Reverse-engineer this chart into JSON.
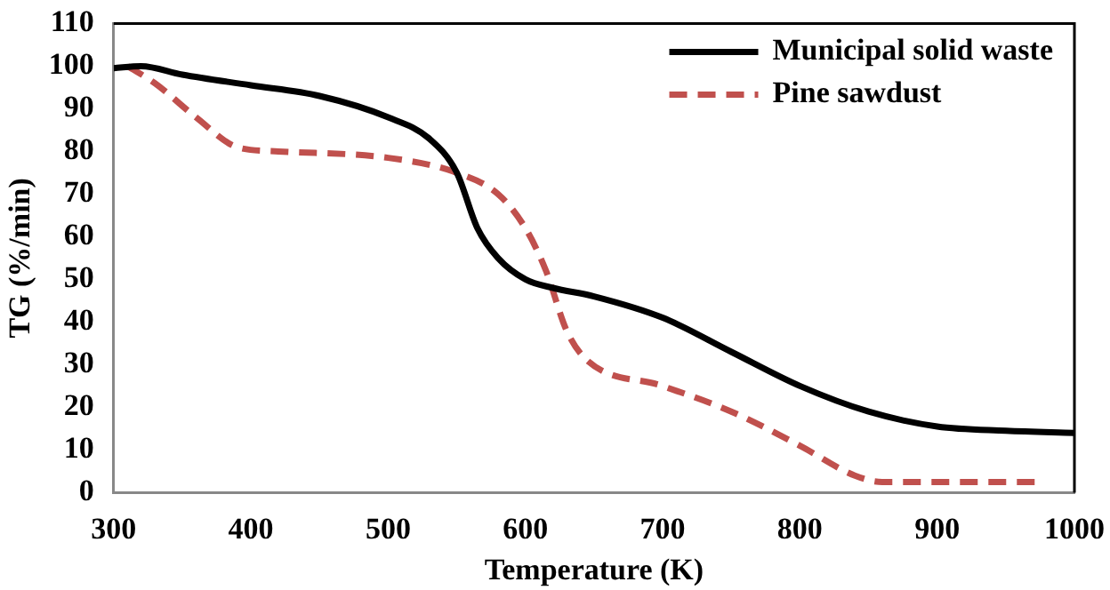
{
  "chart_data": {
    "type": "line",
    "xlabel": "Temperature (K)",
    "ylabel": "TG (%/min)",
    "xlim": [
      300,
      1000
    ],
    "xticks": [
      300,
      400,
      500,
      600,
      700,
      800,
      900,
      1000
    ],
    "ylim": [
      0,
      110
    ],
    "yticks": [
      0,
      10,
      20,
      30,
      40,
      50,
      60,
      70,
      80,
      90,
      100,
      110
    ],
    "grid": false,
    "legend": "top right",
    "marker": "none",
    "series": [
      {
        "name": "Municipal solid waste",
        "color": "#000000",
        "line_style": "solid",
        "x": [
          300,
          320,
          350,
          400,
          450,
          500,
          530,
          550,
          565,
          580,
          600,
          620,
          650,
          700,
          750,
          800,
          850,
          900,
          950,
          1000
        ],
        "values": [
          99.5,
          100,
          98,
          95.5,
          93,
          88,
          83,
          75,
          62,
          55,
          50,
          48,
          46,
          41,
          33,
          25,
          19,
          15.5,
          14.5,
          14
        ]
      },
      {
        "name": "Pine sawdust",
        "color": "#c0504d",
        "line_style": "dashed",
        "x": [
          310,
          330,
          360,
          390,
          420,
          500,
          550,
          580,
          600,
          615,
          630,
          645,
          700,
          750,
          800,
          840,
          860,
          900,
          975
        ],
        "values": [
          100,
          96,
          88,
          81,
          80,
          78.5,
          75,
          70,
          62,
          52,
          38,
          31,
          25,
          19,
          11,
          4,
          2.5,
          2.5,
          2.5
        ]
      }
    ]
  }
}
